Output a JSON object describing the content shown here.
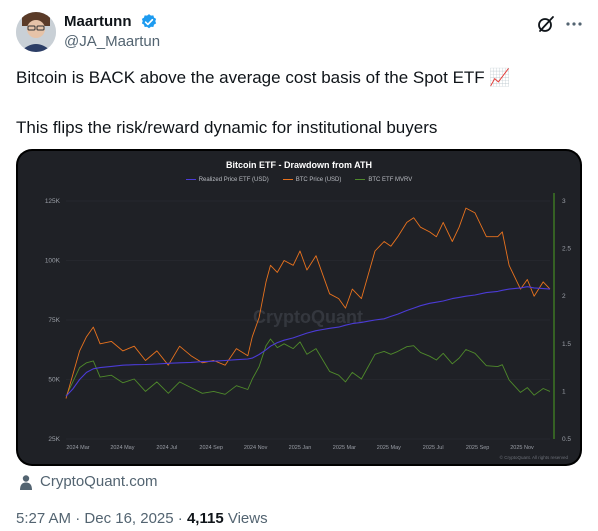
{
  "post": {
    "author_name": "Maartunn",
    "handle": "@JA_Maartun",
    "text_line1": "Bitcoin is BACK above the average cost basis of the Spot ETF 📈",
    "text_line2": "This flips the risk/reward dynamic for institutional buyers",
    "source_label": "CryptoQuant.com",
    "time": "5:27 AM",
    "date": "Dec 16, 2025",
    "separator": "·",
    "views_count": "4,115",
    "views_label": "Views"
  },
  "icons": {
    "verified": "verified-badge-icon",
    "grok": "grok-icon",
    "more": "more-options-icon",
    "source": "person-icon"
  },
  "colors": {
    "verified": "#1d9bf0",
    "realized_price": "#4b3bd6",
    "btc_price": "#e8721e",
    "mvrv": "#4f8a2b",
    "chart_bg": "#1f2126"
  },
  "chart_data": {
    "type": "line",
    "title": "Bitcoin ETF - Drawdown from ATH",
    "watermark": "CryptoQuant",
    "copyright": "© CryptoQuant. All rights reserved",
    "x_ticks": [
      "2024 Mar",
      "2024 May",
      "2024 Jul",
      "2024 Sep",
      "2024 Nov",
      "2025 Jan",
      "2025 Mar",
      "2025 May",
      "2025 Jul",
      "2025 Sep",
      "2025 Nov"
    ],
    "left_axis": {
      "ticks": [
        "25K",
        "50K",
        "75K",
        "100K",
        "125K"
      ],
      "ylim": [
        25000,
        125000
      ]
    },
    "right_axis": {
      "ticks": [
        "0.5",
        "1",
        "1.5",
        "2",
        "2.5",
        "3"
      ],
      "ylim": [
        0.5,
        3
      ]
    },
    "x": [
      0,
      0.3,
      0.6,
      0.9,
      1.2,
      1.5,
      2,
      2.5,
      3,
      3.5,
      4,
      4.5,
      5,
      5.5,
      6,
      6.5,
      7,
      7.5,
      8,
      8.2,
      8.5,
      8.8,
      9,
      9.3,
      9.6,
      10,
      10.3,
      10.6,
      11,
      11.3,
      11.6,
      12,
      12.3,
      12.6,
      13,
      13.3,
      13.6,
      14,
      14.3,
      14.6,
      15,
      15.3,
      15.6,
      16,
      16.3,
      16.6,
      17,
      17.3,
      17.6,
      18,
      18.5,
      19,
      19.2,
      19.5,
      20,
      20.3,
      20.6,
      21,
      21.3
    ],
    "series": [
      {
        "name": "Realized Price ETF (USD)",
        "axis": "left",
        "values": [
          43000,
          46000,
          50000,
          53000,
          54500,
          55000,
          55500,
          56000,
          56200,
          56300,
          56500,
          56800,
          57000,
          57200,
          57500,
          57700,
          58000,
          58300,
          58600,
          59000,
          60500,
          62500,
          64000,
          65500,
          66500,
          67500,
          68500,
          69500,
          70500,
          71000,
          71500,
          72000,
          72800,
          73500,
          74000,
          74500,
          75000,
          75500,
          76500,
          77500,
          79000,
          80000,
          81000,
          82000,
          82500,
          83000,
          84000,
          84500,
          85000,
          85500,
          86500,
          87000,
          87500,
          88000,
          88500,
          89000,
          88500,
          88200,
          88000
        ]
      },
      {
        "name": "BTC Price (USD)",
        "axis": "left",
        "values": [
          42000,
          52000,
          62000,
          68000,
          72000,
          65000,
          66000,
          62000,
          64000,
          58000,
          62000,
          56000,
          64000,
          60000,
          57000,
          58000,
          56000,
          63000,
          60000,
          68000,
          76000,
          91000,
          98000,
          95000,
          100000,
          98000,
          104000,
          96000,
          102000,
          94000,
          86000,
          84000,
          80000,
          88000,
          84000,
          94000,
          104000,
          108000,
          106000,
          110000,
          116000,
          118000,
          114000,
          112000,
          110000,
          116000,
          108000,
          114000,
          122000,
          120000,
          110000,
          110000,
          112000,
          98000,
          88000,
          92000,
          85000,
          91000,
          88000
        ]
      },
      {
        "name": "BTC ETF MVRV",
        "axis": "right",
        "values": [
          0.95,
          1.1,
          1.25,
          1.3,
          1.32,
          1.15,
          1.17,
          1.09,
          1.13,
          1.0,
          1.1,
          0.98,
          1.1,
          1.04,
          0.98,
          1.0,
          0.97,
          1.06,
          1.02,
          1.13,
          1.26,
          1.48,
          1.55,
          1.46,
          1.5,
          1.45,
          1.52,
          1.39,
          1.45,
          1.33,
          1.21,
          1.17,
          1.1,
          1.2,
          1.13,
          1.26,
          1.39,
          1.42,
          1.39,
          1.42,
          1.47,
          1.48,
          1.41,
          1.37,
          1.33,
          1.4,
          1.29,
          1.35,
          1.44,
          1.4,
          1.27,
          1.26,
          1.28,
          1.12,
          0.99,
          1.04,
          0.96,
          1.03,
          1.0
        ]
      }
    ]
  }
}
